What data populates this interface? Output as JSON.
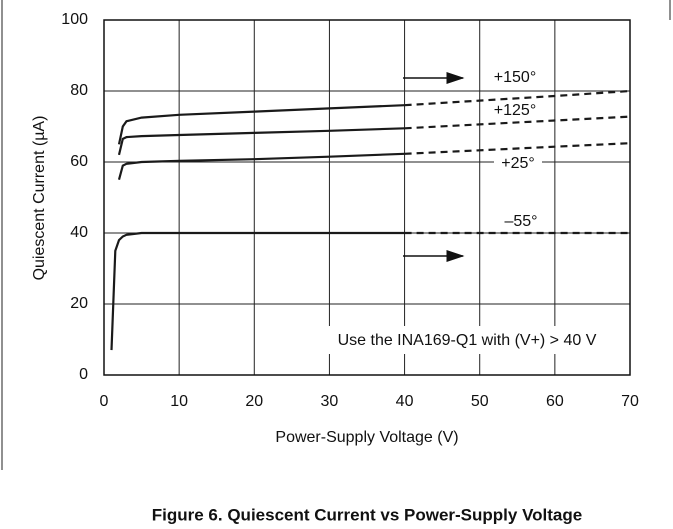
{
  "chart_data": {
    "type": "line",
    "caption": "Figure 6. Quiescent Current vs Power-Supply Voltage",
    "xlabel": "Power-Supply Voltage (V)",
    "ylabel": "Quiescent Current (µA)",
    "note": "Use the INA169-Q1 with (V+) > 40 V",
    "x": [
      1,
      1.5,
      2,
      2.5,
      3,
      5,
      10,
      20,
      30,
      40,
      50,
      60,
      70
    ],
    "dashed_from_x": 40,
    "series": [
      {
        "name": "+150°",
        "color": "#1a1a1a",
        "values": [
          null,
          null,
          65,
          70,
          71.5,
          72.5,
          73.3,
          74.2,
          75.1,
          76,
          77.3,
          78.6,
          80
        ]
      },
      {
        "name": "+125°",
        "color": "#1a1a1a",
        "values": [
          null,
          null,
          62,
          66.5,
          67,
          67.3,
          67.6,
          68.2,
          68.8,
          69.5,
          70.6,
          71.7,
          72.8
        ]
      },
      {
        "name": "+25°",
        "color": "#1a1a1a",
        "values": [
          null,
          null,
          55,
          59,
          59.5,
          60,
          60.3,
          60.8,
          61.5,
          62.3,
          63.3,
          64.3,
          65.3
        ]
      },
      {
        "name": "–55°",
        "color": "#1a1a1a",
        "values": [
          7,
          35,
          38,
          39,
          39.5,
          40,
          40,
          40,
          40,
          40,
          40,
          40,
          40
        ]
      }
    ],
    "xlim": [
      0,
      70
    ],
    "xticks": [
      0,
      10,
      20,
      30,
      40,
      50,
      60,
      70
    ],
    "ylim": [
      0,
      100
    ],
    "yticks": [
      0,
      20,
      40,
      60,
      80,
      100
    ],
    "grid": true
  }
}
